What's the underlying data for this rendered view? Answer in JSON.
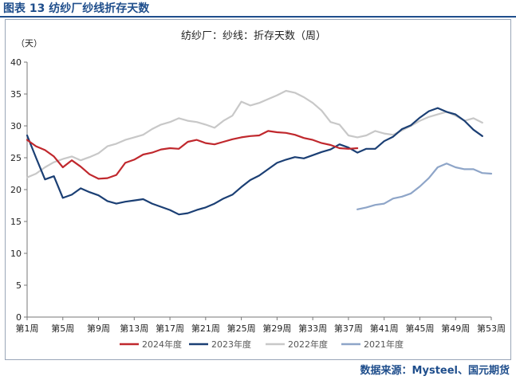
{
  "figure_label": "图表 13  纺纱厂纱线折存天数",
  "source_text": "数据来源：Mysteel、国元期货",
  "chart_data": {
    "type": "line",
    "title": "纺纱厂：纱线：折存天数（周）",
    "ylabel": "（天）",
    "xlabel": "",
    "ylim": [
      0,
      40
    ],
    "yticks": [
      0,
      5,
      10,
      15,
      20,
      25,
      30,
      35,
      40
    ],
    "xlim": [
      1,
      53
    ],
    "xtick_labels": [
      "第1周",
      "第5周",
      "第9周",
      "第13周",
      "第17周",
      "第21周",
      "第25周",
      "第29周",
      "第33周",
      "第37周",
      "第41周",
      "第45周",
      "第49周",
      "第53周"
    ],
    "xtick_weeks": [
      1,
      5,
      9,
      13,
      17,
      21,
      25,
      29,
      33,
      37,
      41,
      45,
      49,
      53
    ],
    "grid": false,
    "legend_position": "bottom",
    "series": [
      {
        "name": "2024年度",
        "color": "#c0282d",
        "x": [
          1,
          2,
          3,
          4,
          5,
          6,
          7,
          8,
          9,
          10,
          11,
          12,
          13,
          14,
          15,
          16,
          17,
          18,
          19,
          20,
          21,
          22,
          23,
          24,
          25,
          26,
          27,
          28,
          29,
          30,
          31,
          32,
          33,
          34,
          35,
          36,
          37,
          38
        ],
        "values": [
          27.8,
          26.8,
          26.2,
          25.2,
          23.5,
          24.6,
          23.6,
          22.4,
          21.7,
          21.8,
          22.3,
          24.2,
          24.7,
          25.5,
          25.8,
          26.3,
          26.5,
          26.4,
          27.5,
          27.8,
          27.3,
          27.1,
          27.5,
          27.9,
          28.2,
          28.4,
          28.5,
          29.2,
          29.0,
          28.9,
          28.6,
          28.1,
          27.8,
          27.3,
          27.0,
          26.5,
          26.4,
          26.5
        ]
      },
      {
        "name": "2023年度",
        "color": "#1b3f74",
        "x": [
          1,
          2,
          3,
          4,
          5,
          6,
          7,
          8,
          9,
          10,
          11,
          12,
          13,
          14,
          15,
          16,
          17,
          18,
          19,
          20,
          21,
          22,
          23,
          24,
          25,
          26,
          27,
          28,
          29,
          30,
          31,
          32,
          33,
          34,
          35,
          36,
          37,
          38,
          39,
          40,
          41,
          42,
          43,
          44,
          45,
          46,
          47,
          48,
          49,
          50,
          51,
          52
        ],
        "values": [
          28.5,
          25.0,
          21.6,
          22.1,
          18.7,
          19.2,
          20.2,
          19.6,
          19.1,
          18.2,
          17.8,
          18.1,
          18.3,
          18.5,
          17.8,
          17.3,
          16.8,
          16.1,
          16.3,
          16.8,
          17.2,
          17.8,
          18.6,
          19.2,
          20.4,
          21.5,
          22.2,
          23.2,
          24.2,
          24.7,
          25.1,
          24.9,
          25.4,
          25.9,
          26.3,
          27.1,
          26.6,
          25.8,
          26.4,
          26.4,
          27.6,
          28.3,
          29.5,
          30.1,
          31.3,
          32.3,
          32.8,
          32.2,
          31.8,
          30.8,
          29.4,
          28.4
        ]
      },
      {
        "name": "2022年度",
        "color": "#c8c8c8",
        "x": [
          1,
          2,
          3,
          4,
          5,
          6,
          7,
          8,
          9,
          10,
          11,
          12,
          13,
          14,
          15,
          16,
          17,
          18,
          19,
          20,
          21,
          22,
          23,
          24,
          25,
          26,
          27,
          28,
          29,
          30,
          31,
          32,
          33,
          34,
          35,
          36,
          37,
          38,
          39,
          40,
          41,
          42,
          43,
          44,
          45,
          46,
          47,
          48,
          49,
          50,
          51,
          52
        ],
        "values": [
          21.9,
          22.5,
          23.5,
          24.3,
          24.8,
          25.2,
          24.6,
          25.1,
          25.7,
          26.8,
          27.2,
          27.8,
          28.2,
          28.6,
          29.5,
          30.2,
          30.6,
          31.2,
          30.8,
          30.6,
          30.2,
          29.7,
          30.8,
          31.6,
          33.8,
          33.2,
          33.6,
          34.2,
          34.8,
          35.5,
          35.2,
          34.5,
          33.6,
          32.4,
          30.6,
          30.2,
          28.5,
          28.2,
          28.5,
          29.2,
          28.8,
          28.6,
          29.3,
          30.0,
          30.8,
          31.4,
          31.8,
          32.2,
          31.6,
          30.8,
          31.2,
          30.5
        ]
      },
      {
        "name": "2021年度",
        "color": "#8ea5c8",
        "x": [
          38,
          39,
          40,
          41,
          42,
          43,
          44,
          45,
          46,
          47,
          48,
          49,
          50,
          51,
          52,
          53
        ],
        "values": [
          16.9,
          17.2,
          17.6,
          17.8,
          18.6,
          18.9,
          19.4,
          20.5,
          21.8,
          23.5,
          24.1,
          23.5,
          23.2,
          23.2,
          22.6,
          22.5
        ]
      }
    ]
  }
}
